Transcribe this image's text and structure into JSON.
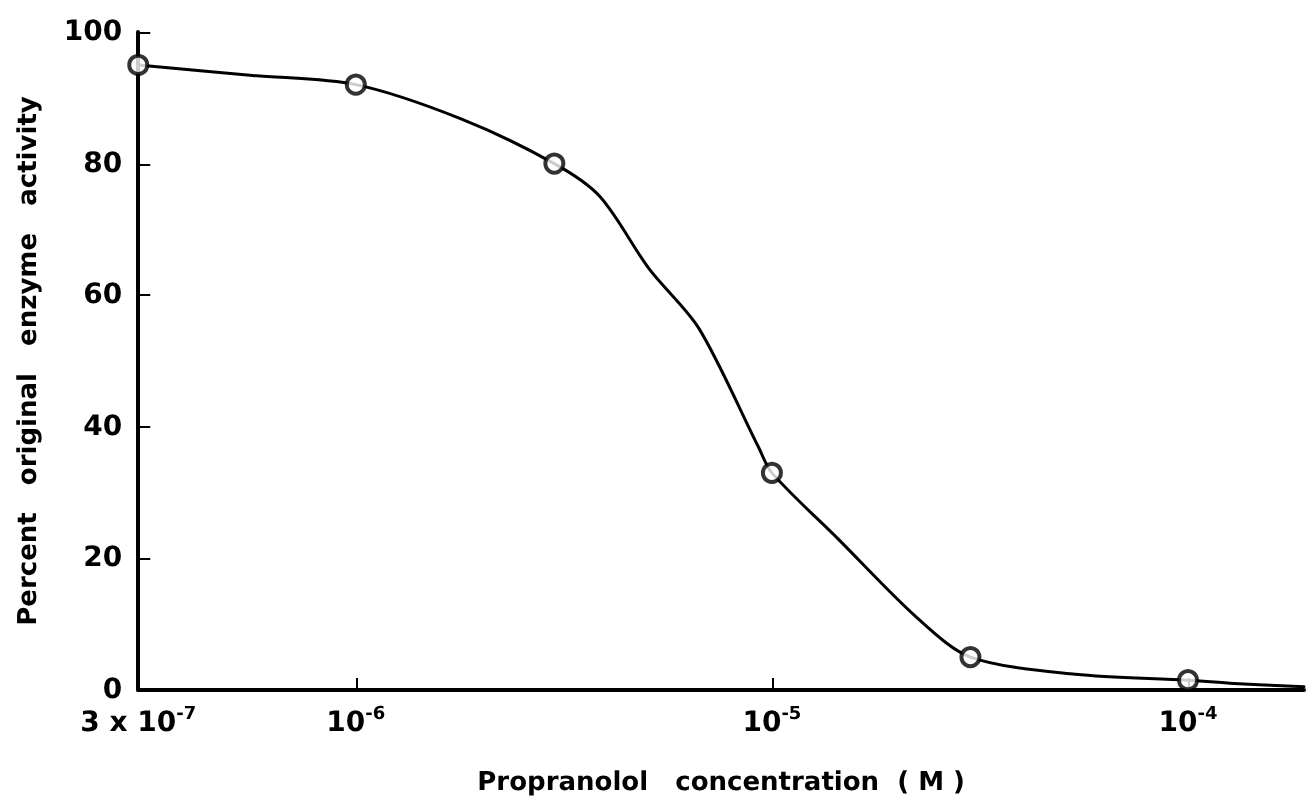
{
  "chart_data": {
    "type": "line",
    "xlabel": "Propranolol   concentration  ( M )",
    "ylabel": "Percent   original   enzyme   activity",
    "log": "x",
    "grid": false,
    "xlim": [
      3e-07,
      0.00019
    ],
    "xticks": [
      {
        "value": 3e-07,
        "label": "3 x 10$^{-7}$"
      },
      {
        "value": 1e-06,
        "label": "10$^{-6}$"
      },
      {
        "value": 1e-05,
        "label": "10$^{-5}$"
      },
      {
        "value": 0.0001,
        "label": "10$^{-4}$"
      }
    ],
    "ylim": [
      0,
      100
    ],
    "yticks": [
      0,
      20,
      40,
      60,
      80,
      100
    ],
    "series": [
      {
        "type": "scatter",
        "color": "#000000",
        "marker": "circle",
        "x": [
          3e-07,
          1e-06,
          3e-06,
          1e-05,
          3e-05,
          0.0001
        ],
        "values": [
          95,
          92,
          80,
          33,
          5,
          1.5
        ]
      },
      {
        "color": "#000000",
        "marker": "none",
        "line_style": "solid",
        "x": [
          3e-07,
          5.65e-07,
          1e-06,
          1.79e-06,
          3e-06,
          3.86e-06,
          5.07e-06,
          6.67e-06,
          9.27e-06,
          1e-05,
          1.44e-05,
          2.23e-05,
          3e-05,
          5.36e-05,
          0.0001,
          0.000129,
          0.00019
        ],
        "values": [
          95,
          93.4,
          92,
          86.8,
          80,
          75,
          64,
          55,
          37,
          33,
          23,
          11,
          5,
          2.4,
          1.5,
          1,
          0.5
        ]
      }
    ]
  }
}
